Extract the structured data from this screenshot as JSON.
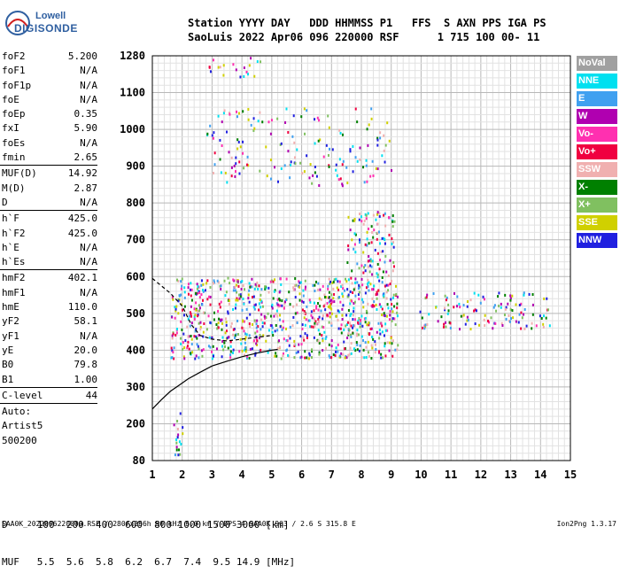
{
  "logo": {
    "top": "Lowell",
    "bottom": "DIGISONDE"
  },
  "header": {
    "line1": "Station YYYY DAY   DDD HHMMSS P1   FFS  S AXN PPS IGA PS",
    "line2": "SaoLuis 2022 Apr06 096 220000 RSF      1 715 100 00- 11"
  },
  "params": [
    {
      "name": "foF2",
      "value": "5.200"
    },
    {
      "name": "foF1",
      "value": "N/A"
    },
    {
      "name": "foF1p",
      "value": "N/A"
    },
    {
      "name": "foE",
      "value": "N/A"
    },
    {
      "name": "foEp",
      "value": "0.35"
    },
    {
      "name": "fxI",
      "value": "5.90"
    },
    {
      "name": "foEs",
      "value": "N/A"
    },
    {
      "name": "fmin",
      "value": "2.65",
      "sep": true
    },
    {
      "name": "MUF(D)",
      "value": "14.92"
    },
    {
      "name": "M(D)",
      "value": "2.87"
    },
    {
      "name": "D",
      "value": "N/A",
      "sep": true
    },
    {
      "name": "h`F",
      "value": "425.0"
    },
    {
      "name": "h`F2",
      "value": "425.0"
    },
    {
      "name": "h`E",
      "value": "N/A"
    },
    {
      "name": "h`Es",
      "value": "N/A",
      "sep": true
    },
    {
      "name": "hmF2",
      "value": "402.1"
    },
    {
      "name": "hmF1",
      "value": "N/A"
    },
    {
      "name": "hmE",
      "value": "110.0"
    },
    {
      "name": "yF2",
      "value": "58.1"
    },
    {
      "name": "yF1",
      "value": "N/A"
    },
    {
      "name": "yE",
      "value": "20.0"
    },
    {
      "name": "B0",
      "value": "79.8"
    },
    {
      "name": "B1",
      "value": "1.00",
      "sep": true
    },
    {
      "name": "C-level",
      "value": "44",
      "sep": true
    },
    {
      "name": "Auto:",
      "value": ""
    },
    {
      "name": "Artist5",
      "value": ""
    },
    {
      "name": "500200",
      "value": ""
    }
  ],
  "legend": [
    {
      "label": "NoVal",
      "color": "#a0a0a0"
    },
    {
      "label": "NNE",
      "color": "#00e0f0"
    },
    {
      "label": "E",
      "color": "#40a0f0"
    },
    {
      "label": "W",
      "color": "#b000b0"
    },
    {
      "label": "Vo-",
      "color": "#ff30b0"
    },
    {
      "label": "Vo+",
      "color": "#f00040"
    },
    {
      "label": "SSW",
      "color": "#f0b0b0"
    },
    {
      "label": "X-",
      "color": "#008000"
    },
    {
      "label": "X+",
      "color": "#80c060"
    },
    {
      "label": "SSE",
      "color": "#d0d000"
    },
    {
      "label": "NNW",
      "color": "#2020e0"
    }
  ],
  "muf_table": {
    "d_line": "D     100  200  400  600  800 1000 1500 3000 [km]",
    "muf_line": "MUF   5.5  5.6  5.8  6.2  6.7  7.4  9.5 14.9 [MHz]"
  },
  "footer": {
    "left": "SAA0K_2022096220000.RSF / 280fx256h 50 kHz 5.0 km / DPS-4 SAA0K 903 / 2.6 S 315.8 E",
    "right": "Ion2Png 1.3.17"
  },
  "chart_data": {
    "type": "scatter",
    "title": "",
    "xlabel": "",
    "ylabel": "",
    "xlim": [
      1,
      15
    ],
    "ylim": [
      80,
      1280
    ],
    "x_ticks": [
      1,
      2,
      3,
      4,
      5,
      6,
      7,
      8,
      9,
      10,
      11,
      12,
      13,
      14,
      15
    ],
    "y_ticks": [
      80,
      200,
      300,
      400,
      500,
      600,
      700,
      800,
      900,
      1000,
      1100,
      1280
    ],
    "grid": true,
    "legend_position": "right",
    "series": [
      {
        "name": "profile",
        "style": "line-black",
        "x": [
          1.0,
          1.3,
          1.6,
          1.9,
          2.2,
          2.6,
          3.0,
          3.5,
          4.0,
          4.5,
          5.0,
          5.2
        ],
        "y": [
          240,
          265,
          288,
          305,
          322,
          340,
          357,
          370,
          382,
          392,
          400,
          402
        ]
      },
      {
        "name": "trace",
        "style": "line-dash",
        "x": [
          1.0,
          1.3,
          1.6,
          2.0,
          2.3,
          2.6,
          3.0,
          3.5,
          4.0,
          4.5,
          5.0
        ],
        "y": [
          595,
          575,
          555,
          520,
          470,
          440,
          430,
          425,
          430,
          435,
          440
        ]
      }
    ],
    "echo_clusters": [
      {
        "fmin": 1.6,
        "fmax": 9.2,
        "hmin": 380,
        "hmax": 600,
        "count": 900
      },
      {
        "fmin": 7.5,
        "fmax": 9.1,
        "hmin": 600,
        "hmax": 780,
        "count": 110
      },
      {
        "fmin": 2.8,
        "fmax": 9.0,
        "hmin": 850,
        "hmax": 1060,
        "count": 170
      },
      {
        "fmin": 2.8,
        "fmax": 4.6,
        "hmin": 1180,
        "hmax": 1275,
        "count": 20
      },
      {
        "fmin": 9.9,
        "fmax": 14.3,
        "hmin": 460,
        "hmax": 560,
        "count": 130
      },
      {
        "fmin": 1.7,
        "fmax": 2.0,
        "hmin": 90,
        "hmax": 260,
        "count": 18
      }
    ]
  }
}
